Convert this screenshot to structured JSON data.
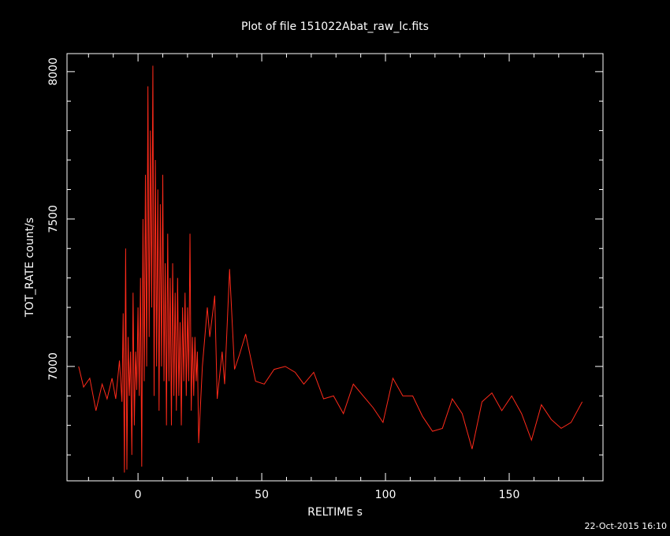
{
  "chart_data": {
    "type": "line",
    "title": "Plot of file 151022Abat_raw_lc.fits",
    "x_label": "RELTIME  s",
    "y_label": "TOT_RATE  count/s",
    "timestamp": "22-Oct-2015 16:10",
    "color": "#ff2a1a",
    "xlim": [
      -28.7,
      187.9
    ],
    "ylim": [
      6612,
      8061
    ],
    "xticks": [
      0,
      50,
      100,
      150
    ],
    "yticks": [
      7000,
      7500,
      8000
    ],
    "xminorticks": [
      -20,
      -10,
      10,
      20,
      30,
      40,
      60,
      70,
      80,
      90,
      110,
      120,
      130,
      140,
      160,
      170,
      180
    ],
    "yminorticks": [
      6700,
      6800,
      6900,
      7100,
      7200,
      7300,
      7400,
      7600,
      7700,
      7800,
      7900
    ],
    "x": [
      -24,
      -22,
      -19.5,
      -17,
      -14.5,
      -12.5,
      -10.5,
      -9,
      -7.5,
      -6.5,
      -6,
      -5.5,
      -5,
      -4.5,
      -4,
      -3.5,
      -3,
      -2.5,
      -2,
      -1.5,
      -1,
      -0.5,
      0,
      0.5,
      1,
      1.5,
      2,
      2.5,
      3,
      3.5,
      4,
      4.5,
      5,
      5.5,
      6,
      6.5,
      7,
      7.5,
      8,
      8.5,
      9,
      9.5,
      10,
      10.5,
      11,
      11.5,
      12,
      12.5,
      13,
      13.5,
      14,
      14.5,
      15,
      15.5,
      16,
      16.5,
      17,
      17.5,
      18,
      18.5,
      19,
      19.5,
      20,
      20.5,
      21,
      21.5,
      22,
      22.5,
      23,
      23.5,
      24,
      24.5,
      26,
      28,
      29,
      31,
      32,
      34,
      35,
      37,
      39,
      41,
      43.5,
      47.5,
      51,
      55,
      59.5,
      63.5,
      67,
      71,
      75,
      79,
      83,
      87,
      91,
      95,
      99,
      103,
      107,
      111,
      115,
      119,
      123,
      127,
      131,
      135,
      139,
      143,
      147,
      151,
      155,
      159,
      163,
      167,
      171,
      175,
      179.5
    ],
    "values": [
      7000,
      6930,
      6960,
      6850,
      6940,
      6890,
      6960,
      6890,
      7020,
      6880,
      7180,
      6640,
      7400,
      6650,
      7100,
      6900,
      7050,
      6700,
      7250,
      6800,
      7050,
      6920,
      7200,
      6900,
      7300,
      6660,
      7500,
      6950,
      7650,
      7000,
      7950,
      7100,
      7800,
      7200,
      8020,
      6900,
      7700,
      7000,
      7600,
      6850,
      7550,
      7000,
      7650,
      6950,
      7350,
      6800,
      7450,
      6950,
      7300,
      6800,
      7350,
      6900,
      7250,
      6850,
      7300,
      6900,
      7150,
      6800,
      7200,
      6950,
      7250,
      6900,
      7200,
      6950,
      7450,
      6850,
      7100,
      6900,
      7100,
      6950,
      7050,
      6740,
      7000,
      7200,
      7100,
      7240,
      6890,
      7050,
      6940,
      7330,
      6990,
      7040,
      7110,
      6950,
      6940,
      6990,
      7000,
      6980,
      6940,
      6980,
      6890,
      6900,
      6840,
      6940,
      6900,
      6860,
      6810,
      6960,
      6900,
      6900,
      6830,
      6780,
      6790,
      6890,
      6840,
      6720,
      6880,
      6910,
      6850,
      6900,
      6840,
      6750,
      6870,
      6820,
      6790,
      6810,
      6880
    ]
  }
}
